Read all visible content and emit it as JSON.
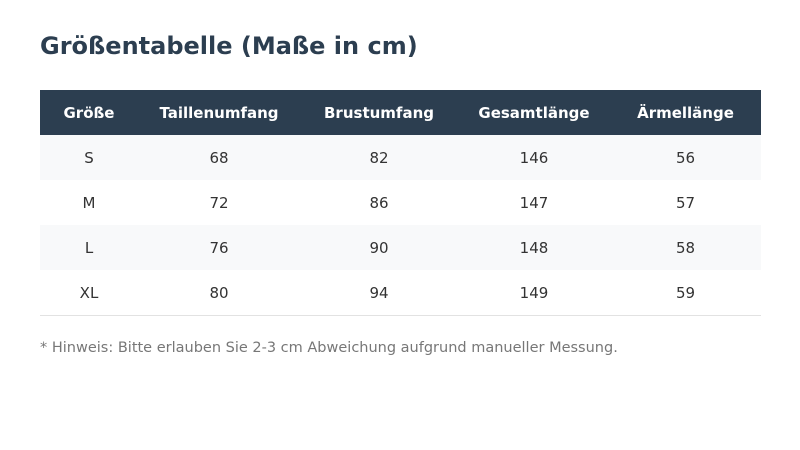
{
  "header": {
    "title": "Größentabelle (Maße in cm)"
  },
  "table": {
    "columns": [
      "Größe",
      "Taillenumfang",
      "Brustumfang",
      "Gesamtlänge",
      "Ärmellänge"
    ],
    "rows": [
      [
        "S",
        68,
        82,
        146,
        56
      ],
      [
        "M",
        72,
        86,
        147,
        57
      ],
      [
        "L",
        76,
        90,
        148,
        58
      ],
      [
        "XL",
        80,
        94,
        149,
        59
      ]
    ]
  },
  "note": "* Hinweis: Bitte erlauben Sie 2-3 cm Abweichung aufgrund manueller Messung."
}
